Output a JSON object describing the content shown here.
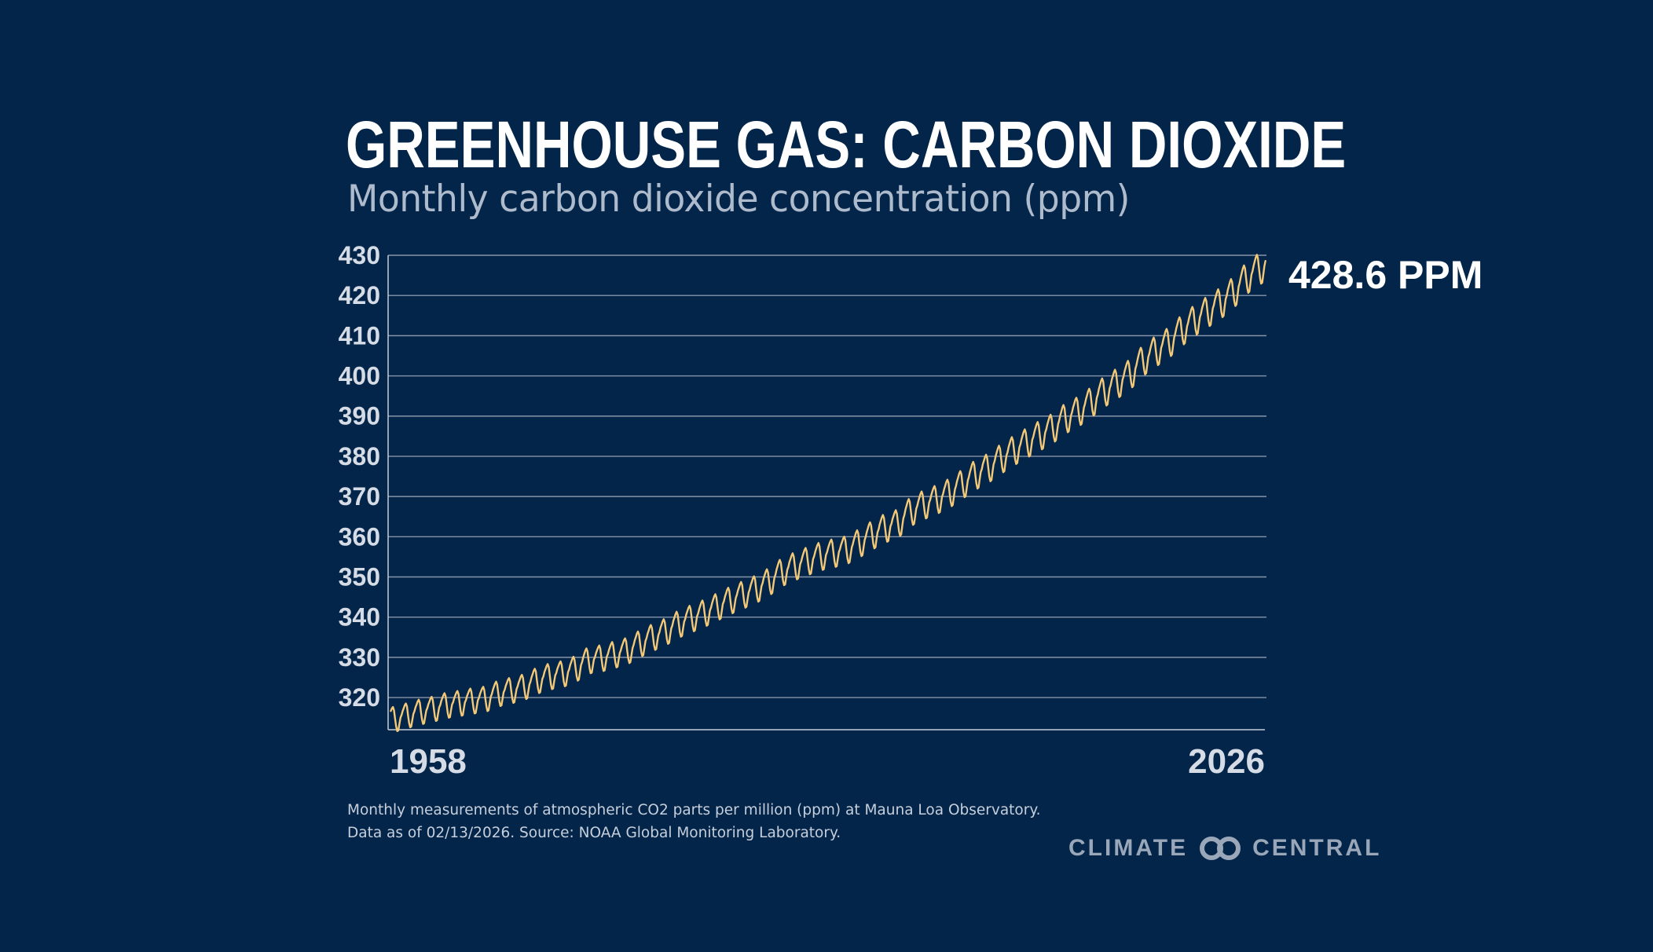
{
  "title": "GREENHOUSE GAS: CARBON DIOXIDE",
  "subtitle": "Monthly carbon dioxide concentration (ppm)",
  "footnote": {
    "line1": "Monthly measurements of atmospheric CO2 parts per million (ppm) at Mauna Loa Observatory.",
    "line2": "Data as of 02/13/2026. Source: NOAA Global Monitoring Laboratory."
  },
  "brand": {
    "left": "CLIMATE",
    "right": "CENTRAL",
    "icon": "interlocking-rings-logo-icon"
  },
  "colors": {
    "background": "#03254a",
    "line": "#f3c977",
    "grid": "#8795a8",
    "text": "#ffffff",
    "muted": "#aebbcd"
  },
  "chart_data": {
    "type": "line",
    "title": "GREENHOUSE GAS: CARBON DIOXIDE",
    "subtitle": "Monthly carbon dioxide concentration (ppm)",
    "xlabel": "",
    "ylabel": "",
    "x_start": 1958.21,
    "x_end": 2026.04,
    "xlim": [
      1958,
      2026
    ],
    "ylim": [
      312,
      430
    ],
    "yticks": [
      320,
      330,
      340,
      350,
      360,
      370,
      380,
      390,
      400,
      410,
      420,
      430
    ],
    "xtick_labels": [
      "1958",
      "2026"
    ],
    "grid": "horizontal",
    "series": [
      {
        "color": "#f3c977",
        "annual_means": [
          [
            1958,
            315.0
          ],
          [
            1959,
            316.0
          ],
          [
            1960,
            316.9
          ],
          [
            1961,
            317.6
          ],
          [
            1962,
            318.5
          ],
          [
            1963,
            319.0
          ],
          [
            1964,
            319.6
          ],
          [
            1965,
            320.0
          ],
          [
            1966,
            321.4
          ],
          [
            1967,
            322.2
          ],
          [
            1968,
            323.0
          ],
          [
            1969,
            324.6
          ],
          [
            1970,
            325.7
          ],
          [
            1971,
            326.3
          ],
          [
            1972,
            327.5
          ],
          [
            1973,
            329.7
          ],
          [
            1974,
            330.2
          ],
          [
            1975,
            331.1
          ],
          [
            1976,
            332.0
          ],
          [
            1977,
            333.8
          ],
          [
            1978,
            335.4
          ],
          [
            1979,
            336.8
          ],
          [
            1980,
            338.7
          ],
          [
            1981,
            340.1
          ],
          [
            1982,
            341.4
          ],
          [
            1983,
            343.0
          ],
          [
            1984,
            344.6
          ],
          [
            1985,
            346.0
          ],
          [
            1986,
            347.4
          ],
          [
            1987,
            349.2
          ],
          [
            1988,
            351.6
          ],
          [
            1989,
            353.1
          ],
          [
            1990,
            354.4
          ],
          [
            1991,
            355.6
          ],
          [
            1992,
            356.4
          ],
          [
            1993,
            357.1
          ],
          [
            1994,
            358.8
          ],
          [
            1995,
            360.8
          ],
          [
            1996,
            362.6
          ],
          [
            1997,
            363.7
          ],
          [
            1998,
            366.7
          ],
          [
            1999,
            368.4
          ],
          [
            2000,
            369.7
          ],
          [
            2001,
            371.3
          ],
          [
            2002,
            373.5
          ],
          [
            2003,
            375.8
          ],
          [
            2004,
            377.5
          ],
          [
            2005,
            379.8
          ],
          [
            2006,
            381.9
          ],
          [
            2007,
            383.8
          ],
          [
            2008,
            385.6
          ],
          [
            2009,
            387.4
          ],
          [
            2010,
            389.9
          ],
          [
            2011,
            391.6
          ],
          [
            2012,
            393.9
          ],
          [
            2013,
            396.5
          ],
          [
            2014,
            398.6
          ],
          [
            2015,
            400.8
          ],
          [
            2016,
            404.2
          ],
          [
            2017,
            406.6
          ],
          [
            2018,
            408.7
          ],
          [
            2019,
            411.7
          ],
          [
            2020,
            414.2
          ],
          [
            2021,
            416.4
          ],
          [
            2022,
            418.5
          ],
          [
            2023,
            421.1
          ],
          [
            2024,
            424.6
          ],
          [
            2025,
            427.1
          ],
          [
            2026,
            428.6
          ]
        ],
        "seasonal_amplitude": [
          [
            1958,
            6.2
          ],
          [
            2026,
            7.8
          ]
        ],
        "seasonal_cycle": "peak in May, trough in September/October",
        "last_value": 428.6
      }
    ],
    "annotations": [
      {
        "text": "428.6 PPM",
        "x": 2026.04,
        "y": 428.6
      }
    ]
  }
}
